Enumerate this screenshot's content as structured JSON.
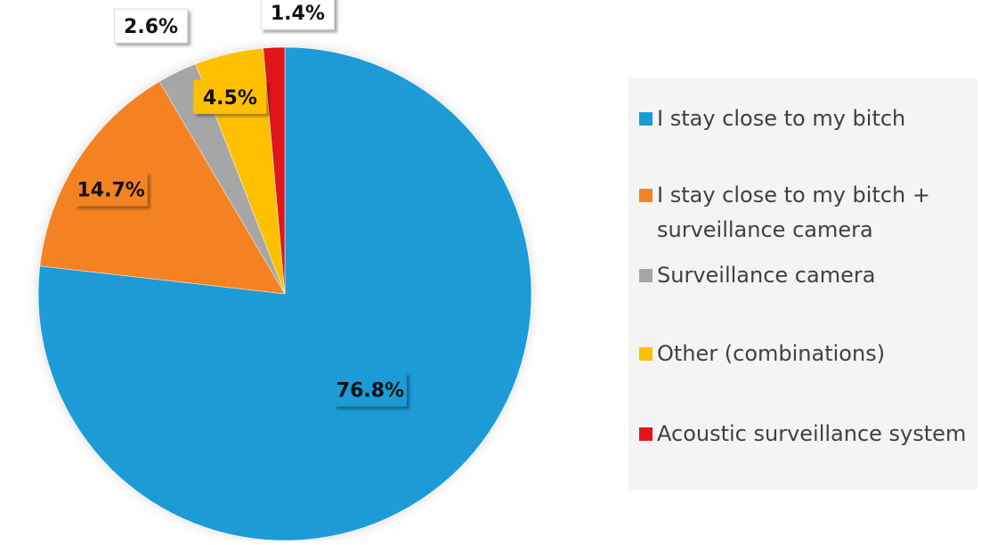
{
  "chart_data": {
    "type": "pie",
    "title": "",
    "start_angle_deg": 0,
    "direction": "clockwise",
    "legend_position": "right",
    "slices": [
      {
        "label": "I stay close to my bitch",
        "value": 76.8,
        "value_label": "76.8%",
        "color": "#1A9BD7"
      },
      {
        "label": "I stay close to my bitch + surveillance camera",
        "value": 14.7,
        "value_label": "14.7%",
        "color": "#F58220"
      },
      {
        "label": "Surveillance camera",
        "value": 2.6,
        "value_label": "2.6%",
        "color": "#A6A6A6"
      },
      {
        "label": "Other (combinations)",
        "value": 4.5,
        "value_label": "4.5%",
        "color": "#FFC000"
      },
      {
        "label": "Acoustic surveillance system",
        "value": 1.4,
        "value_label": "1.4%",
        "color": "#E0161D"
      }
    ]
  }
}
